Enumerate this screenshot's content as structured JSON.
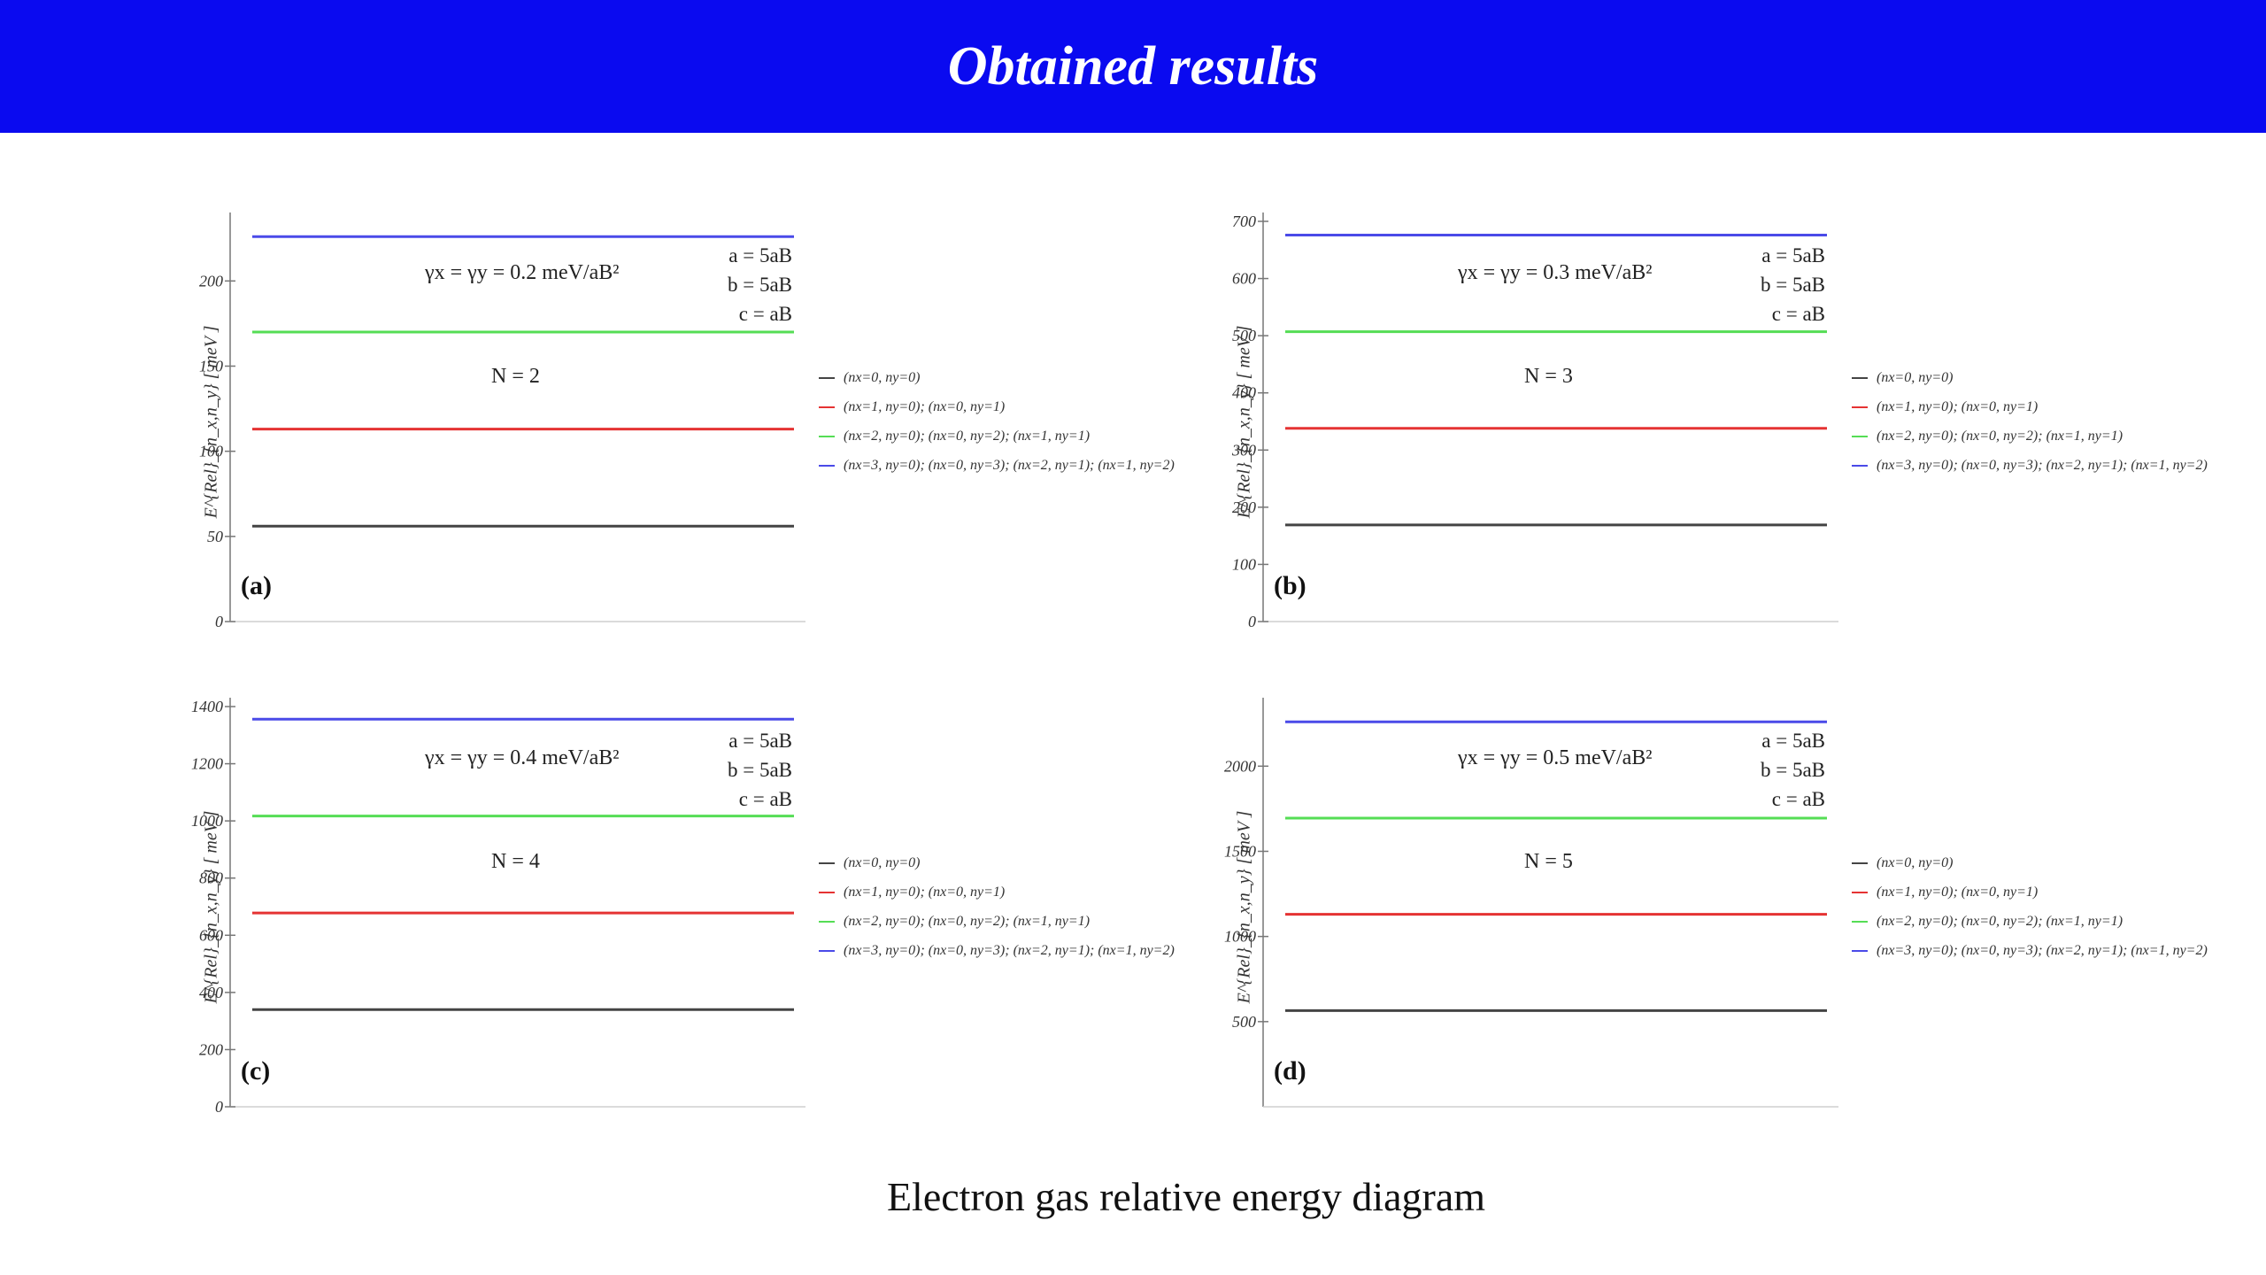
{
  "header": {
    "title": "Obtained results"
  },
  "caption": "Electron gas relative energy diagram",
  "colors": {
    "banner": "#0a0af0",
    "black": "#444444",
    "red": "#e53333",
    "green": "#55dd55",
    "blue": "#4a4ae8"
  },
  "chart_data": [
    {
      "type": "line",
      "panel_label": "(a)",
      "ylabel": "E^{Rel}_{n_x,n_y} [ meV ]",
      "yticks": [
        0,
        50,
        100,
        150,
        200
      ],
      "ylim": [
        0,
        235
      ],
      "gamma_label": "γx = γy = 0.2 meV/aB²",
      "n_label": "N = 2",
      "params": [
        "a = 5aB",
        "b = 5aB",
        "c = aB"
      ],
      "series": [
        {
          "name": "(nx=0, ny=0)",
          "color": "#444444",
          "value": 56
        },
        {
          "name": "(nx=1, ny=0); (nx=0, ny=1)",
          "color": "#e53333",
          "value": 113
        },
        {
          "name": "(nx=2, ny=0); (nx=0, ny=2); (nx=1, ny=1)",
          "color": "#55dd55",
          "value": 170
        },
        {
          "name": "(nx=3, ny=0); (nx=0, ny=3); (nx=2, ny=1); (nx=1, ny=2)",
          "color": "#4a4ae8",
          "value": 226
        }
      ]
    },
    {
      "type": "line",
      "panel_label": "(b)",
      "ylabel": "E^{Rel}_{n_x,n_y} [ meV ]",
      "yticks": [
        0,
        100,
        200,
        300,
        400,
        500,
        600,
        700
      ],
      "ylim": [
        0,
        700
      ],
      "gamma_label": "γx = γy = 0.3 meV/aB²",
      "n_label": "N = 3",
      "params": [
        "a = 5aB",
        "b = 5aB",
        "c = aB"
      ],
      "series": [
        {
          "name": "(nx=0, ny=0)",
          "color": "#444444",
          "value": 169
        },
        {
          "name": "(nx=1, ny=0); (nx=0, ny=1)",
          "color": "#e53333",
          "value": 338
        },
        {
          "name": "(nx=2, ny=0); (nx=0, ny=2); (nx=1, ny=1)",
          "color": "#55dd55",
          "value": 507
        },
        {
          "name": "(nx=3, ny=0); (nx=0, ny=3); (nx=2, ny=1); (nx=1, ny=2)",
          "color": "#4a4ae8",
          "value": 676
        }
      ]
    },
    {
      "type": "line",
      "panel_label": "(c)",
      "ylabel": "E^{Rel}_{n_x,n_y} [ meV ]",
      "yticks": [
        0,
        200,
        400,
        600,
        800,
        1000,
        1200,
        1400
      ],
      "ylim": [
        0,
        1400
      ],
      "gamma_label": "γx = γy = 0.4 meV/aB²",
      "n_label": "N = 4",
      "params": [
        "a = 5aB",
        "b = 5aB",
        "c = aB"
      ],
      "series": [
        {
          "name": "(nx=0, ny=0)",
          "color": "#444444",
          "value": 340
        },
        {
          "name": "(nx=1, ny=0); (nx=0, ny=1)",
          "color": "#e53333",
          "value": 678
        },
        {
          "name": "(nx=2, ny=0); (nx=0, ny=2); (nx=1, ny=1)",
          "color": "#55dd55",
          "value": 1017
        },
        {
          "name": "(nx=3, ny=0); (nx=0, ny=3); (nx=2, ny=1); (nx=1, ny=2)",
          "color": "#4a4ae8",
          "value": 1356
        }
      ]
    },
    {
      "type": "line",
      "panel_label": "(d)",
      "ylabel": "E^{Rel}_{n_x,n_y} [ meV ]",
      "yticks": [
        500,
        1000,
        1500,
        2000
      ],
      "ylim": [
        0,
        2350
      ],
      "gamma_label": "γx = γy = 0.5 meV/aB²",
      "n_label": "N = 5",
      "params": [
        "a = 5aB",
        "b = 5aB",
        "c = aB"
      ],
      "series": [
        {
          "name": "(nx=0, ny=0)",
          "color": "#444444",
          "value": 565
        },
        {
          "name": "(nx=1, ny=0); (nx=0, ny=1)",
          "color": "#e53333",
          "value": 1130
        },
        {
          "name": "(nx=2, ny=0); (nx=0, ny=2); (nx=1, ny=1)",
          "color": "#55dd55",
          "value": 1695
        },
        {
          "name": "(nx=3, ny=0); (nx=0, ny=3); (nx=2, ny=1); (nx=1, ny=2)",
          "color": "#4a4ae8",
          "value": 2260
        }
      ]
    }
  ]
}
